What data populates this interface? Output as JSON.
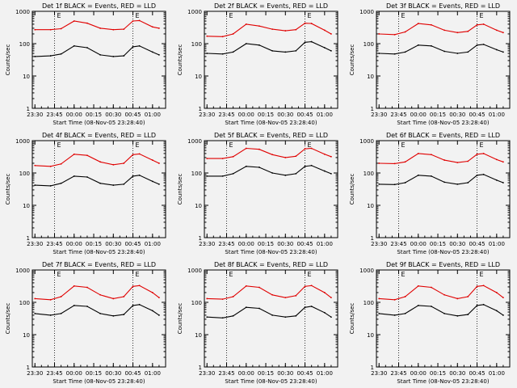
{
  "figure": {
    "xlabel": "Start Time (08-Nov-05 23:28:40)",
    "ylabel": "Counts/sec",
    "x_tick_labels": [
      "23:30",
      "23:45",
      "00:00",
      "00:15",
      "00:30",
      "00:45",
      "01:00"
    ],
    "y_tick_labels": [
      "1",
      "10",
      "100",
      "1000"
    ],
    "marker_label": "E",
    "colors": {
      "events": "#000000",
      "lld": "#e00000",
      "background": "#f2f2f2"
    }
  },
  "chart_data": [
    {
      "type": "line",
      "title": "Det 1f BLACK = Events, RED = LLD",
      "xlabel": "Start Time (08-Nov-05 23:28:40)",
      "ylabel": "Counts/sec",
      "yscale": "log",
      "ylim": [
        1,
        1000
      ],
      "x": [
        "23:30",
        "23:42",
        "23:50",
        "00:00",
        "00:10",
        "00:20",
        "00:30",
        "00:38",
        "00:45",
        "00:50",
        "01:00",
        "01:05"
      ],
      "series": [
        {
          "name": "Events",
          "color": "#000000",
          "values": [
            40,
            42,
            48,
            85,
            75,
            45,
            40,
            42,
            80,
            85,
            55,
            45
          ]
        },
        {
          "name": "LLD",
          "color": "#e00000",
          "values": [
            270,
            270,
            290,
            500,
            430,
            300,
            270,
            280,
            500,
            520,
            330,
            300
          ]
        }
      ],
      "markers": [
        "23:45",
        "00:45"
      ],
      "grid": false
    },
    {
      "type": "line",
      "title": "Det 2f BLACK = Events, RED = LLD",
      "xlabel": "Start Time (08-Nov-05 23:28:40)",
      "ylabel": "Counts/sec",
      "yscale": "log",
      "ylim": [
        1,
        1000
      ],
      "x": [
        "23:30",
        "23:42",
        "23:50",
        "00:00",
        "00:10",
        "00:20",
        "00:30",
        "00:38",
        "00:45",
        "00:50",
        "01:00",
        "01:05"
      ],
      "series": [
        {
          "name": "Events",
          "color": "#000000",
          "values": [
            50,
            48,
            55,
            100,
            90,
            60,
            55,
            60,
            110,
            115,
            75,
            60
          ]
        },
        {
          "name": "LLD",
          "color": "#e00000",
          "values": [
            170,
            165,
            200,
            400,
            350,
            280,
            250,
            270,
            430,
            420,
            260,
            200
          ]
        }
      ],
      "markers": [
        "23:45",
        "00:45"
      ],
      "grid": false
    },
    {
      "type": "line",
      "title": "Det 3f BLACK = Events, RED = LLD",
      "xlabel": "Start Time (08-Nov-05 23:28:40)",
      "ylabel": "Counts/sec",
      "yscale": "log",
      "ylim": [
        1,
        1000
      ],
      "x": [
        "23:30",
        "23:42",
        "23:50",
        "00:00",
        "00:10",
        "00:20",
        "00:30",
        "00:38",
        "00:45",
        "00:50",
        "01:00",
        "01:05"
      ],
      "series": [
        {
          "name": "Events",
          "color": "#000000",
          "values": [
            50,
            48,
            55,
            90,
            85,
            58,
            50,
            55,
            90,
            95,
            65,
            55
          ]
        },
        {
          "name": "LLD",
          "color": "#e00000",
          "values": [
            200,
            190,
            230,
            420,
            380,
            260,
            220,
            240,
            380,
            400,
            260,
            220
          ]
        }
      ],
      "markers": [
        "23:45",
        "00:45"
      ],
      "grid": false
    },
    {
      "type": "line",
      "title": "Det 4f BLACK = Events, RED = LLD",
      "xlabel": "Start Time (08-Nov-05 23:28:40)",
      "ylabel": "Counts/sec",
      "yscale": "log",
      "ylim": [
        1,
        1000
      ],
      "x": [
        "23:30",
        "23:42",
        "23:50",
        "00:00",
        "00:10",
        "00:20",
        "00:30",
        "00:38",
        "00:45",
        "00:50",
        "01:00",
        "01:05"
      ],
      "series": [
        {
          "name": "Events",
          "color": "#000000",
          "values": [
            42,
            40,
            48,
            80,
            75,
            48,
            42,
            45,
            80,
            85,
            55,
            45
          ]
        },
        {
          "name": "LLD",
          "color": "#e00000",
          "values": [
            170,
            160,
            190,
            380,
            350,
            220,
            180,
            200,
            370,
            390,
            250,
            200
          ]
        }
      ],
      "markers": [
        "23:45",
        "00:45"
      ],
      "grid": false
    },
    {
      "type": "line",
      "title": "Det 5f BLACK = Events, RED = LLD",
      "xlabel": "Start Time (08-Nov-05 23:28:40)",
      "ylabel": "Counts/sec",
      "yscale": "log",
      "ylim": [
        1,
        1000
      ],
      "x": [
        "23:30",
        "23:42",
        "23:50",
        "00:00",
        "00:10",
        "00:20",
        "00:30",
        "00:38",
        "00:45",
        "00:50",
        "01:00",
        "01:05"
      ],
      "series": [
        {
          "name": "Events",
          "color": "#000000",
          "values": [
            80,
            80,
            95,
            160,
            150,
            100,
            85,
            95,
            160,
            170,
            115,
            95
          ]
        },
        {
          "name": "LLD",
          "color": "#e00000",
          "values": [
            280,
            280,
            320,
            580,
            540,
            370,
            300,
            330,
            560,
            580,
            380,
            320
          ]
        }
      ],
      "markers": [
        "23:45",
        "00:45"
      ],
      "grid": false
    },
    {
      "type": "line",
      "title": "Det 6f BLACK = Events, RED = LLD",
      "xlabel": "Start Time (08-Nov-05 23:28:40)",
      "ylabel": "Counts/sec",
      "yscale": "log",
      "ylim": [
        1,
        1000
      ],
      "x": [
        "23:30",
        "23:42",
        "23:50",
        "00:00",
        "00:10",
        "00:20",
        "00:30",
        "00:38",
        "00:45",
        "00:50",
        "01:00",
        "01:05"
      ],
      "series": [
        {
          "name": "Events",
          "color": "#000000",
          "values": [
            45,
            44,
            50,
            85,
            80,
            52,
            45,
            50,
            85,
            90,
            60,
            50
          ]
        },
        {
          "name": "LLD",
          "color": "#e00000",
          "values": [
            200,
            195,
            220,
            400,
            370,
            250,
            210,
            230,
            380,
            400,
            260,
            220
          ]
        }
      ],
      "markers": [
        "23:45",
        "00:45"
      ],
      "grid": false
    },
    {
      "type": "line",
      "title": "Det 7f BLACK = Events, RED = LLD",
      "xlabel": "Start Time (08-Nov-05 23:28:40)",
      "ylabel": "Counts/sec",
      "yscale": "log",
      "ylim": [
        1,
        1000
      ],
      "x": [
        "23:30",
        "23:42",
        "23:50",
        "00:00",
        "00:10",
        "00:20",
        "00:30",
        "00:38",
        "00:45",
        "00:50",
        "01:00",
        "01:05"
      ],
      "series": [
        {
          "name": "Events",
          "color": "#000000",
          "values": [
            45,
            40,
            45,
            80,
            75,
            45,
            38,
            42,
            80,
            85,
            55,
            40
          ]
        },
        {
          "name": "LLD",
          "color": "#e00000",
          "values": [
            130,
            120,
            150,
            320,
            290,
            170,
            130,
            150,
            310,
            330,
            200,
            140
          ]
        }
      ],
      "markers": [
        "23:45",
        "00:45"
      ],
      "grid": false
    },
    {
      "type": "line",
      "title": "Det 8f BLACK = Events, RED = LLD",
      "xlabel": "Start Time (08-Nov-05 23:28:40)",
      "ylabel": "Counts/sec",
      "yscale": "log",
      "ylim": [
        1,
        1000
      ],
      "x": [
        "23:30",
        "23:42",
        "23:50",
        "00:00",
        "00:10",
        "00:20",
        "00:30",
        "00:38",
        "00:45",
        "00:50",
        "01:00",
        "01:05"
      ],
      "series": [
        {
          "name": "Events",
          "color": "#000000",
          "values": [
            35,
            33,
            38,
            70,
            65,
            40,
            35,
            38,
            70,
            75,
            48,
            35
          ]
        },
        {
          "name": "LLD",
          "color": "#e00000",
          "values": [
            130,
            125,
            150,
            320,
            290,
            170,
            140,
            160,
            310,
            330,
            200,
            140
          ]
        }
      ],
      "markers": [
        "23:45",
        "00:45"
      ],
      "grid": false
    },
    {
      "type": "line",
      "title": "Det 9f BLACK = Events, RED = LLD",
      "xlabel": "Start Time (08-Nov-05 23:28:40)",
      "ylabel": "Counts/sec",
      "yscale": "log",
      "ylim": [
        1,
        1000
      ],
      "x": [
        "23:30",
        "23:42",
        "23:50",
        "00:00",
        "00:10",
        "00:20",
        "00:30",
        "00:38",
        "00:45",
        "00:50",
        "01:00",
        "01:05"
      ],
      "series": [
        {
          "name": "Events",
          "color": "#000000",
          "values": [
            45,
            40,
            45,
            80,
            75,
            45,
            38,
            42,
            80,
            85,
            55,
            40
          ]
        },
        {
          "name": "LLD",
          "color": "#e00000",
          "values": [
            130,
            120,
            150,
            320,
            290,
            170,
            130,
            150,
            310,
            330,
            200,
            140
          ]
        }
      ],
      "markers": [
        "23:45",
        "00:45"
      ],
      "grid": false
    }
  ]
}
